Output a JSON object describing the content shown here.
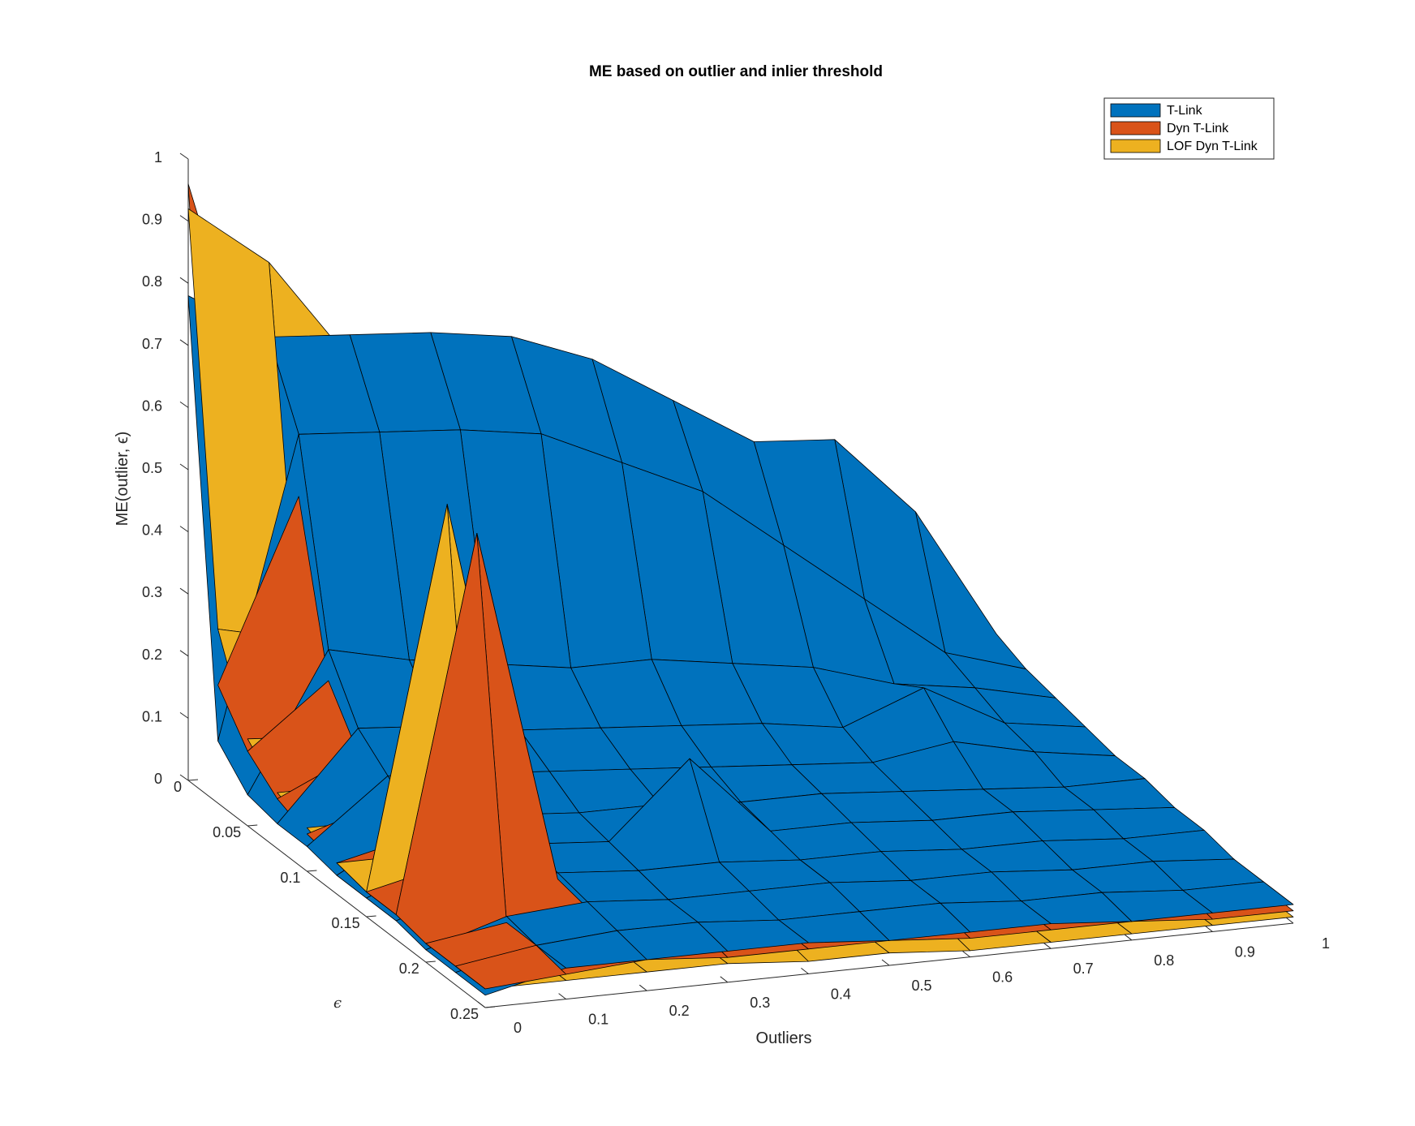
{
  "chart_data": {
    "type": "surface3d",
    "title": "ME based on outlier and inlier threshold",
    "xlabel": "Outliers",
    "ylabel": "ϵ",
    "zlabel": "ME(outlier, ϵ)",
    "xlim": [
      0,
      1
    ],
    "ylim": [
      0,
      0.25
    ],
    "zlim": [
      0,
      1
    ],
    "x_ticks": [
      "0",
      "0.1",
      "0.2",
      "0.3",
      "0.4",
      "0.5",
      "0.6",
      "0.7",
      "0.8",
      "0.9",
      "1"
    ],
    "y_ticks": [
      "0",
      "0.05",
      "0.1",
      "0.15",
      "0.2",
      "0.25"
    ],
    "z_ticks": [
      "0",
      "0.1",
      "0.2",
      "0.3",
      "0.4",
      "0.5",
      "0.6",
      "0.7",
      "0.8",
      "0.9",
      "1"
    ],
    "grid": false,
    "legend_position": "top-right",
    "x": [
      0,
      0.1,
      0.2,
      0.3,
      0.4,
      0.5,
      0.6,
      0.7,
      0.8,
      0.9,
      1.0
    ],
    "y": [
      0,
      0.025,
      0.05,
      0.075,
      0.1,
      0.125,
      0.15,
      0.175,
      0.2,
      0.225,
      0.25
    ],
    "series": [
      {
        "name": "T-Link",
        "color": "#0072BD",
        "z": [
          [
            0.78,
            0.7,
            0.69,
            0.68,
            0.66,
            0.61,
            0.53,
            0.45,
            0.44,
            0.31,
            0.1
          ],
          [
            0.1,
            0.58,
            0.57,
            0.56,
            0.54,
            0.48,
            0.42,
            0.32,
            0.22,
            0.12,
            0.08
          ],
          [
            0.05,
            0.27,
            0.24,
            0.22,
            0.2,
            0.2,
            0.18,
            0.16,
            0.12,
            0.1,
            0.07
          ],
          [
            0.04,
            0.18,
            0.17,
            0.15,
            0.14,
            0.13,
            0.12,
            0.1,
            0.15,
            0.08,
            0.06
          ],
          [
            0.04,
            0.14,
            0.13,
            0.12,
            0.11,
            0.1,
            0.09,
            0.08,
            0.1,
            0.07,
            0.05
          ],
          [
            0.03,
            0.1,
            0.1,
            0.09,
            0.09,
            0.08,
            0.08,
            0.07,
            0.06,
            0.05,
            0.05
          ],
          [
            0.03,
            0.08,
            0.09,
            0.08,
            0.2,
            0.07,
            0.07,
            0.06,
            0.06,
            0.05,
            0.04
          ],
          [
            0.03,
            0.07,
            0.08,
            0.07,
            0.07,
            0.06,
            0.06,
            0.05,
            0.05,
            0.04,
            0.04
          ],
          [
            0.02,
            0.06,
            0.07,
            0.06,
            0.06,
            0.06,
            0.05,
            0.05,
            0.04,
            0.04,
            0.03
          ],
          [
            0.02,
            0.05,
            0.06,
            0.06,
            0.05,
            0.05,
            0.05,
            0.04,
            0.04,
            0.03,
            0.03
          ],
          [
            0.02,
            0.05,
            0.05,
            0.05,
            0.05,
            0.04,
            0.04,
            0.04,
            0.03,
            0.03,
            0.03
          ]
        ]
      },
      {
        "name": "Dyn T-Link",
        "color": "#D95319",
        "z": [
          [
            0.96,
            0.52,
            0.5,
            0.48,
            0.46,
            0.33,
            0.2,
            0.06,
            0.06,
            0.05,
            0.04
          ],
          [
            0.19,
            0.48,
            0.31,
            0.27,
            0.25,
            0.22,
            0.18,
            0.14,
            0.1,
            0.08,
            0.06
          ],
          [
            0.12,
            0.22,
            0.2,
            0.18,
            0.16,
            0.14,
            0.12,
            0.1,
            0.08,
            0.07,
            0.05
          ],
          [
            0.08,
            0.14,
            0.14,
            0.12,
            0.11,
            0.1,
            0.09,
            0.08,
            0.07,
            0.06,
            0.05
          ],
          [
            0.06,
            0.1,
            0.11,
            0.1,
            0.09,
            0.08,
            0.07,
            0.06,
            0.06,
            0.05,
            0.04
          ],
          [
            0.05,
            0.08,
            0.09,
            0.08,
            0.07,
            0.07,
            0.06,
            0.05,
            0.05,
            0.04,
            0.04
          ],
          [
            0.04,
            0.07,
            0.08,
            0.07,
            0.06,
            0.06,
            0.05,
            0.05,
            0.04,
            0.04,
            0.03
          ],
          [
            0.04,
            0.64,
            0.07,
            0.06,
            0.06,
            0.05,
            0.05,
            0.04,
            0.04,
            0.03,
            0.03
          ],
          [
            0.03,
            0.05,
            0.06,
            0.05,
            0.05,
            0.05,
            0.04,
            0.04,
            0.03,
            0.03,
            0.03
          ],
          [
            0.03,
            0.05,
            0.05,
            0.05,
            0.04,
            0.04,
            0.04,
            0.03,
            0.03,
            0.03,
            0.02
          ],
          [
            0.03,
            0.04,
            0.05,
            0.04,
            0.04,
            0.04,
            0.03,
            0.03,
            0.03,
            0.02,
            0.02
          ]
        ]
      },
      {
        "name": "LOF Dyn T-Link",
        "color": "#EDB120",
        "z": [
          [
            0.92,
            0.82,
            0.65,
            0.63,
            0.12,
            0.05,
            0.03,
            0.02,
            0.02,
            0.02,
            0.02
          ],
          [
            0.28,
            0.25,
            0.23,
            0.21,
            0.08,
            0.04,
            0.03,
            0.02,
            0.02,
            0.02,
            0.02
          ],
          [
            0.14,
            0.13,
            0.13,
            0.12,
            0.06,
            0.03,
            0.03,
            0.02,
            0.02,
            0.02,
            0.02
          ],
          [
            0.09,
            0.09,
            0.09,
            0.08,
            0.05,
            0.03,
            0.02,
            0.02,
            0.02,
            0.02,
            0.01
          ],
          [
            0.07,
            0.07,
            0.07,
            0.06,
            0.04,
            0.03,
            0.02,
            0.02,
            0.02,
            0.01,
            0.01
          ],
          [
            0.05,
            0.05,
            0.06,
            0.05,
            0.04,
            0.03,
            0.02,
            0.02,
            0.02,
            0.01,
            0.01
          ],
          [
            0.04,
            0.65,
            0.05,
            0.05,
            0.03,
            0.02,
            0.02,
            0.02,
            0.01,
            0.01,
            0.01
          ],
          [
            0.04,
            0.04,
            0.04,
            0.04,
            0.03,
            0.02,
            0.02,
            0.02,
            0.01,
            0.01,
            0.01
          ],
          [
            0.03,
            0.04,
            0.04,
            0.04,
            0.03,
            0.02,
            0.02,
            0.01,
            0.01,
            0.01,
            0.01
          ],
          [
            0.03,
            0.03,
            0.03,
            0.03,
            0.03,
            0.02,
            0.02,
            0.01,
            0.01,
            0.01,
            0.01
          ],
          [
            0.03,
            0.03,
            0.03,
            0.03,
            0.02,
            0.02,
            0.01,
            0.01,
            0.01,
            0.01,
            0.01
          ]
        ]
      }
    ]
  }
}
